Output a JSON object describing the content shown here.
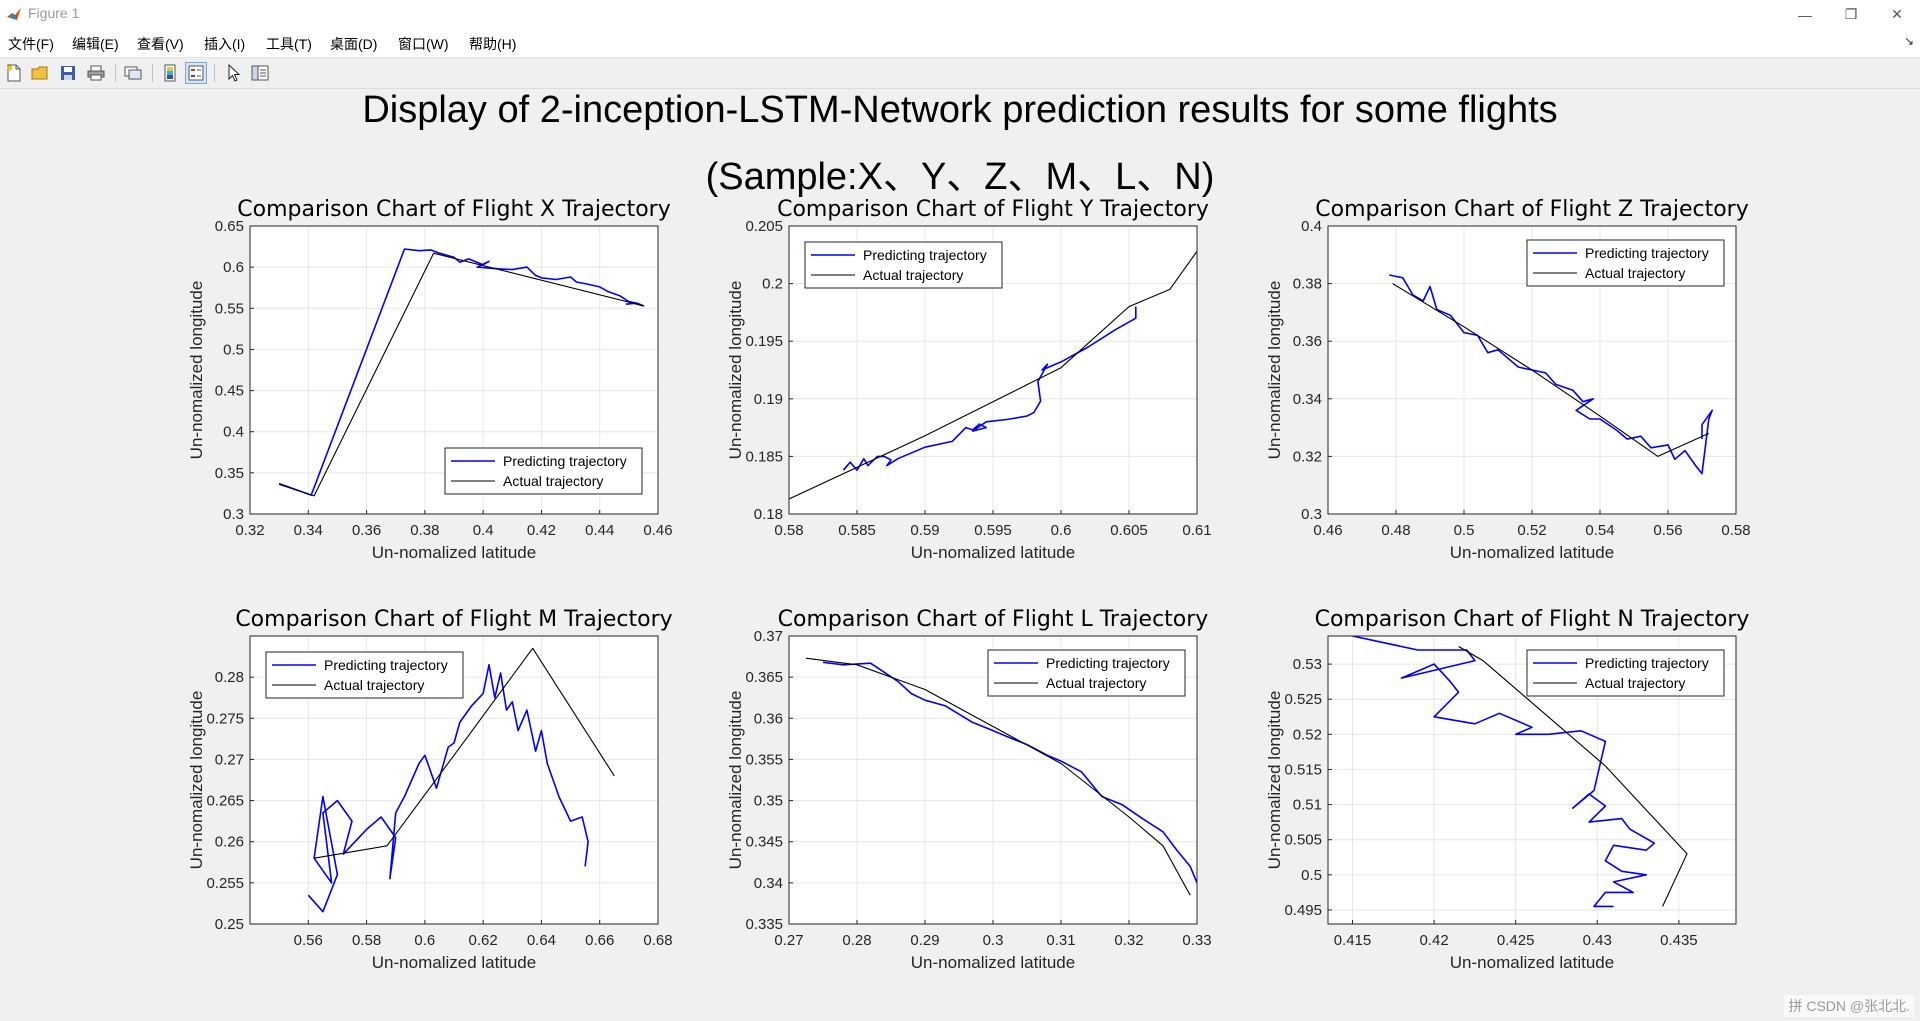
{
  "window": {
    "title": "Figure 1",
    "controls": {
      "minimize": "—",
      "restore": "❐",
      "close": "✕"
    }
  },
  "menu": [
    "文件(F)",
    "编辑(E)",
    "查看(V)",
    "插入(I)",
    "工具(T)",
    "桌面(D)",
    "窗口(W)",
    "帮助(H)"
  ],
  "toolbar": [
    "new-figure-icon",
    "open-file-icon",
    "save-icon",
    "print-icon",
    "link-plot-icon",
    "colorbar-icon",
    "legend-icon",
    "edit-plot-arrow-icon",
    "property-inspector-icon"
  ],
  "figure": {
    "suptitle_line1": "Display of 2-inception-LSTM-Network prediction results for some flights",
    "suptitle_line2": "(Sample:X、Y、Z、M、L、N)"
  },
  "watermark": "CSDN @张北北.",
  "ime_indicator": "拼",
  "colors": {
    "predicted": "#0000ff",
    "actual": "#000000",
    "grid": "#e6e6e6",
    "axes_bg": "#ffffff"
  },
  "chart_data": [
    {
      "type": "line",
      "title": "Comparison Chart of Flight X Trajectory",
      "xlabel": "Un-nomalized latitude",
      "ylabel": "Un-nomalized longitude",
      "xlim": [
        0.32,
        0.46
      ],
      "ylim": [
        0.3,
        0.65
      ],
      "xticks": [
        0.32,
        0.34,
        0.36,
        0.38,
        0.4,
        0.42,
        0.44,
        0.46
      ],
      "xtick_labels": [
        "0.32",
        "0.34",
        "0.36",
        "0.38",
        "0.4",
        "0.42",
        "0.44",
        "0.46"
      ],
      "yticks": [
        0.3,
        0.35,
        0.4,
        0.45,
        0.5,
        0.55,
        0.6,
        0.65
      ],
      "ytick_labels": [
        "0.3",
        "0.35",
        "0.4",
        "0.45",
        "0.5",
        "0.55",
        "0.6",
        "0.65"
      ],
      "legend": {
        "position": "bottom-right",
        "entries": [
          "Predicting trajectory",
          "Actual trajectory"
        ]
      },
      "grid": true,
      "series": [
        {
          "name": "Predicting trajectory",
          "color": "#0000ff",
          "x": [
            0.33,
            0.341,
            0.373,
            0.378,
            0.382,
            0.385,
            0.39,
            0.392,
            0.395,
            0.4,
            0.402,
            0.398,
            0.405,
            0.41,
            0.415,
            0.418,
            0.42,
            0.425,
            0.43,
            0.432,
            0.435,
            0.44,
            0.443,
            0.447,
            0.45,
            0.453,
            0.455,
            0.452,
            0.449
          ],
          "y": [
            0.337,
            0.323,
            0.622,
            0.62,
            0.621,
            0.617,
            0.612,
            0.606,
            0.61,
            0.603,
            0.607,
            0.6,
            0.598,
            0.597,
            0.6,
            0.59,
            0.587,
            0.585,
            0.588,
            0.582,
            0.58,
            0.576,
            0.57,
            0.565,
            0.558,
            0.556,
            0.553,
            0.556,
            0.555
          ]
        },
        {
          "name": "Actual trajectory",
          "color": "#000000",
          "x": [
            0.33,
            0.342,
            0.383,
            0.455
          ],
          "y": [
            0.336,
            0.322,
            0.617,
            0.553
          ]
        }
      ]
    },
    {
      "type": "line",
      "title": "Comparison Chart of Flight Y Trajectory",
      "xlabel": "Un-nomalized latitude",
      "ylabel": "Un-nomalized longitude",
      "xlim": [
        0.58,
        0.61
      ],
      "ylim": [
        0.18,
        0.205
      ],
      "xticks": [
        0.58,
        0.585,
        0.59,
        0.595,
        0.6,
        0.605,
        0.61
      ],
      "xtick_labels": [
        "0.58",
        "0.585",
        "0.59",
        "0.595",
        "0.6",
        "0.605",
        "0.61"
      ],
      "yticks": [
        0.18,
        0.185,
        0.19,
        0.195,
        0.2,
        0.205
      ],
      "ytick_labels": [
        "0.18",
        "0.185",
        "0.19",
        "0.195",
        "0.2",
        "0.205"
      ],
      "legend": {
        "position": "top-left",
        "entries": [
          "Predicting trajectory",
          "Actual trajectory"
        ]
      },
      "grid": true,
      "series": [
        {
          "name": "Predicting trajectory",
          "color": "#0000ff",
          "x": [
            0.584,
            0.5845,
            0.585,
            0.5855,
            0.5858,
            0.5865,
            0.587,
            0.5875,
            0.5872,
            0.588,
            0.59,
            0.592,
            0.593,
            0.5935,
            0.594,
            0.5945,
            0.5935,
            0.5945,
            0.596,
            0.5975,
            0.598,
            0.5985,
            0.5983,
            0.599,
            0.5986,
            0.6,
            0.602,
            0.604,
            0.6055,
            0.6055
          ],
          "y": [
            0.1838,
            0.1845,
            0.1838,
            0.1848,
            0.1842,
            0.185,
            0.185,
            0.1847,
            0.1842,
            0.1848,
            0.1858,
            0.1863,
            0.1875,
            0.1873,
            0.1878,
            0.1875,
            0.1872,
            0.188,
            0.1882,
            0.1885,
            0.1888,
            0.1898,
            0.1915,
            0.193,
            0.1925,
            0.1932,
            0.1945,
            0.196,
            0.197,
            0.198
          ]
        },
        {
          "name": "Actual trajectory",
          "color": "#000000",
          "x": [
            0.58,
            0.59,
            0.6,
            0.605,
            0.608,
            0.61
          ],
          "y": [
            0.1813,
            0.1868,
            0.1927,
            0.198,
            0.1995,
            0.2028
          ]
        }
      ]
    },
    {
      "type": "line",
      "title": "Comparison Chart of Flight Z Trajectory",
      "xlabel": "Un-nomalized latitude",
      "ylabel": "Un-nomalized longitude",
      "xlim": [
        0.46,
        0.58
      ],
      "ylim": [
        0.3,
        0.4
      ],
      "xticks": [
        0.46,
        0.48,
        0.5,
        0.52,
        0.54,
        0.56,
        0.58
      ],
      "xtick_labels": [
        "0.46",
        "0.48",
        "0.5",
        "0.52",
        "0.54",
        "0.56",
        "0.58"
      ],
      "yticks": [
        0.3,
        0.32,
        0.34,
        0.36,
        0.38,
        0.4
      ],
      "ytick_labels": [
        "0.3",
        "0.32",
        "0.34",
        "0.36",
        "0.38",
        "0.4"
      ],
      "legend": {
        "position": "top-right",
        "entries": [
          "Predicting trajectory",
          "Actual trajectory"
        ]
      },
      "grid": true,
      "series": [
        {
          "name": "Predicting trajectory",
          "color": "#0000ff",
          "x": [
            0.478,
            0.482,
            0.485,
            0.488,
            0.49,
            0.492,
            0.496,
            0.5,
            0.504,
            0.507,
            0.51,
            0.516,
            0.52,
            0.524,
            0.527,
            0.532,
            0.535,
            0.538,
            0.533,
            0.537,
            0.54,
            0.545,
            0.548,
            0.552,
            0.555,
            0.56,
            0.562,
            0.565,
            0.568,
            0.57,
            0.572,
            0.573,
            0.57,
            0.57
          ],
          "y": [
            0.383,
            0.382,
            0.376,
            0.374,
            0.379,
            0.371,
            0.369,
            0.363,
            0.362,
            0.356,
            0.357,
            0.351,
            0.35,
            0.349,
            0.345,
            0.343,
            0.339,
            0.34,
            0.336,
            0.333,
            0.333,
            0.329,
            0.326,
            0.327,
            0.323,
            0.324,
            0.319,
            0.322,
            0.317,
            0.314,
            0.333,
            0.336,
            0.331,
            0.326
          ]
        },
        {
          "name": "Actual trajectory",
          "color": "#000000",
          "x": [
            0.479,
            0.5,
            0.52,
            0.54,
            0.557,
            0.572
          ],
          "y": [
            0.38,
            0.365,
            0.35,
            0.334,
            0.32,
            0.328
          ]
        }
      ]
    },
    {
      "type": "line",
      "title": "Comparison Chart of Flight M Trajectory",
      "xlabel": "Un-nomalized latitude",
      "ylabel": "Un-nomalized longitude",
      "xlim": [
        0.54,
        0.68
      ],
      "ylim": [
        0.25,
        0.285
      ],
      "xticks": [
        0.56,
        0.58,
        0.6,
        0.62,
        0.64,
        0.66,
        0.68
      ],
      "xtick_labels": [
        "0.56",
        "0.58",
        "0.6",
        "0.62",
        "0.64",
        "0.66",
        "0.68"
      ],
      "yticks": [
        0.25,
        0.255,
        0.26,
        0.265,
        0.27,
        0.275,
        0.28
      ],
      "ytick_labels": [
        "0.25",
        "0.255",
        "0.26",
        "0.265",
        "0.27",
        "0.275",
        "0.28"
      ],
      "legend": {
        "position": "top-left",
        "entries": [
          "Predicting trajectory",
          "Actual trajectory"
        ]
      },
      "grid": true,
      "series": [
        {
          "name": "Predicting trajectory",
          "color": "#0000ff",
          "x": [
            0.56,
            0.565,
            0.57,
            0.565,
            0.562,
            0.568,
            0.565,
            0.57,
            0.575,
            0.572,
            0.58,
            0.585,
            0.59,
            0.588,
            0.59,
            0.593,
            0.598,
            0.6,
            0.604,
            0.608,
            0.61,
            0.612,
            0.616,
            0.62,
            0.622,
            0.624,
            0.626,
            0.628,
            0.63,
            0.632,
            0.635,
            0.638,
            0.64,
            0.642,
            0.646,
            0.65,
            0.654,
            0.656,
            0.655
          ],
          "y": [
            0.2535,
            0.2515,
            0.256,
            0.2655,
            0.258,
            0.255,
            0.2635,
            0.265,
            0.2625,
            0.2585,
            0.2615,
            0.263,
            0.2605,
            0.2555,
            0.2635,
            0.2655,
            0.2695,
            0.2705,
            0.2665,
            0.2715,
            0.272,
            0.2745,
            0.2765,
            0.278,
            0.2815,
            0.2775,
            0.2805,
            0.276,
            0.277,
            0.2735,
            0.276,
            0.271,
            0.2735,
            0.2695,
            0.2655,
            0.2625,
            0.263,
            0.26,
            0.257
          ]
        },
        {
          "name": "Actual trajectory",
          "color": "#000000",
          "x": [
            0.562,
            0.587,
            0.61,
            0.637,
            0.665
          ],
          "y": [
            0.258,
            0.2595,
            0.2705,
            0.2835,
            0.268
          ]
        }
      ]
    },
    {
      "type": "line",
      "title": "Comparison Chart of Flight L Trajectory",
      "xlabel": "Un-nomalized latitude",
      "ylabel": "Un-nomalized longitude",
      "xlim": [
        0.27,
        0.33
      ],
      "ylim": [
        0.335,
        0.37
      ],
      "xticks": [
        0.27,
        0.28,
        0.29,
        0.3,
        0.31,
        0.32,
        0.33
      ],
      "xtick_labels": [
        "0.27",
        "0.28",
        "0.29",
        "0.3",
        "0.31",
        "0.32",
        "0.33"
      ],
      "yticks": [
        0.335,
        0.34,
        0.345,
        0.35,
        0.355,
        0.36,
        0.365,
        0.37
      ],
      "ytick_labels": [
        "0.335",
        "0.34",
        "0.345",
        "0.35",
        "0.355",
        "0.36",
        "0.365",
        "0.37"
      ],
      "legend": {
        "position": "top-right",
        "entries": [
          "Predicting trajectory",
          "Actual trajectory"
        ]
      },
      "grid": true,
      "series": [
        {
          "name": "Predicting trajectory",
          "color": "#0000ff",
          "x": [
            0.275,
            0.278,
            0.282,
            0.286,
            0.288,
            0.29,
            0.293,
            0.297,
            0.3,
            0.302,
            0.305,
            0.308,
            0.31,
            0.313,
            0.316,
            0.319,
            0.322,
            0.325,
            0.327,
            0.329,
            0.33
          ],
          "y": [
            0.3668,
            0.3665,
            0.3667,
            0.3645,
            0.363,
            0.3622,
            0.3615,
            0.3595,
            0.3585,
            0.3578,
            0.3568,
            0.3555,
            0.3548,
            0.3535,
            0.3505,
            0.3495,
            0.3478,
            0.3462,
            0.344,
            0.342,
            0.34
          ]
        },
        {
          "name": "Actual trajectory",
          "color": "#000000",
          "x": [
            0.2725,
            0.28,
            0.29,
            0.3,
            0.31,
            0.32,
            0.325,
            0.329
          ],
          "y": [
            0.3673,
            0.3665,
            0.3635,
            0.359,
            0.3545,
            0.348,
            0.3445,
            0.3385
          ]
        }
      ]
    },
    {
      "type": "line",
      "title": "Comparison Chart of Flight N Trajectory",
      "xlabel": "Un-nomalized latitude",
      "ylabel": "Un-nomalized longitude",
      "xlim": [
        0.4135,
        0.4385
      ],
      "ylim": [
        0.493,
        0.534
      ],
      "xticks": [
        0.415,
        0.42,
        0.425,
        0.43,
        0.435
      ],
      "xtick_labels": [
        "0.415",
        "0.42",
        "0.425",
        "0.43",
        "0.435"
      ],
      "yticks": [
        0.495,
        0.5,
        0.505,
        0.51,
        0.515,
        0.52,
        0.525,
        0.53
      ],
      "ytick_labels": [
        "0.495",
        "0.5",
        "0.505",
        "0.51",
        "0.515",
        "0.52",
        "0.525",
        "0.53"
      ],
      "legend": {
        "position": "top-right",
        "entries": [
          "Predicting trajectory",
          "Actual trajectory"
        ]
      },
      "grid": true,
      "series": [
        {
          "name": "Predicting trajectory",
          "color": "#0000ff",
          "x": [
            0.415,
            0.419,
            0.422,
            0.4225,
            0.418,
            0.42,
            0.421,
            0.4215,
            0.42,
            0.4225,
            0.424,
            0.426,
            0.425,
            0.427,
            0.429,
            0.4305,
            0.4298,
            0.4285,
            0.4295,
            0.4305,
            0.4295,
            0.4315,
            0.432,
            0.4335,
            0.433,
            0.431,
            0.4305,
            0.4315,
            0.433,
            0.431,
            0.4322,
            0.4305,
            0.4298,
            0.431
          ],
          "y": [
            0.534,
            0.532,
            0.532,
            0.5305,
            0.528,
            0.53,
            0.5275,
            0.526,
            0.5225,
            0.5215,
            0.523,
            0.521,
            0.52,
            0.52,
            0.5205,
            0.519,
            0.512,
            0.5095,
            0.5115,
            0.5098,
            0.5075,
            0.508,
            0.5065,
            0.5045,
            0.5035,
            0.5042,
            0.502,
            0.5005,
            0.5,
            0.499,
            0.4975,
            0.4975,
            0.4955,
            0.4955
          ]
        },
        {
          "name": "Actual trajectory",
          "color": "#000000",
          "x": [
            0.4215,
            0.423,
            0.427,
            0.4305,
            0.4355,
            0.434
          ],
          "y": [
            0.5325,
            0.5305,
            0.5225,
            0.5155,
            0.503,
            0.4955
          ]
        }
      ]
    }
  ]
}
